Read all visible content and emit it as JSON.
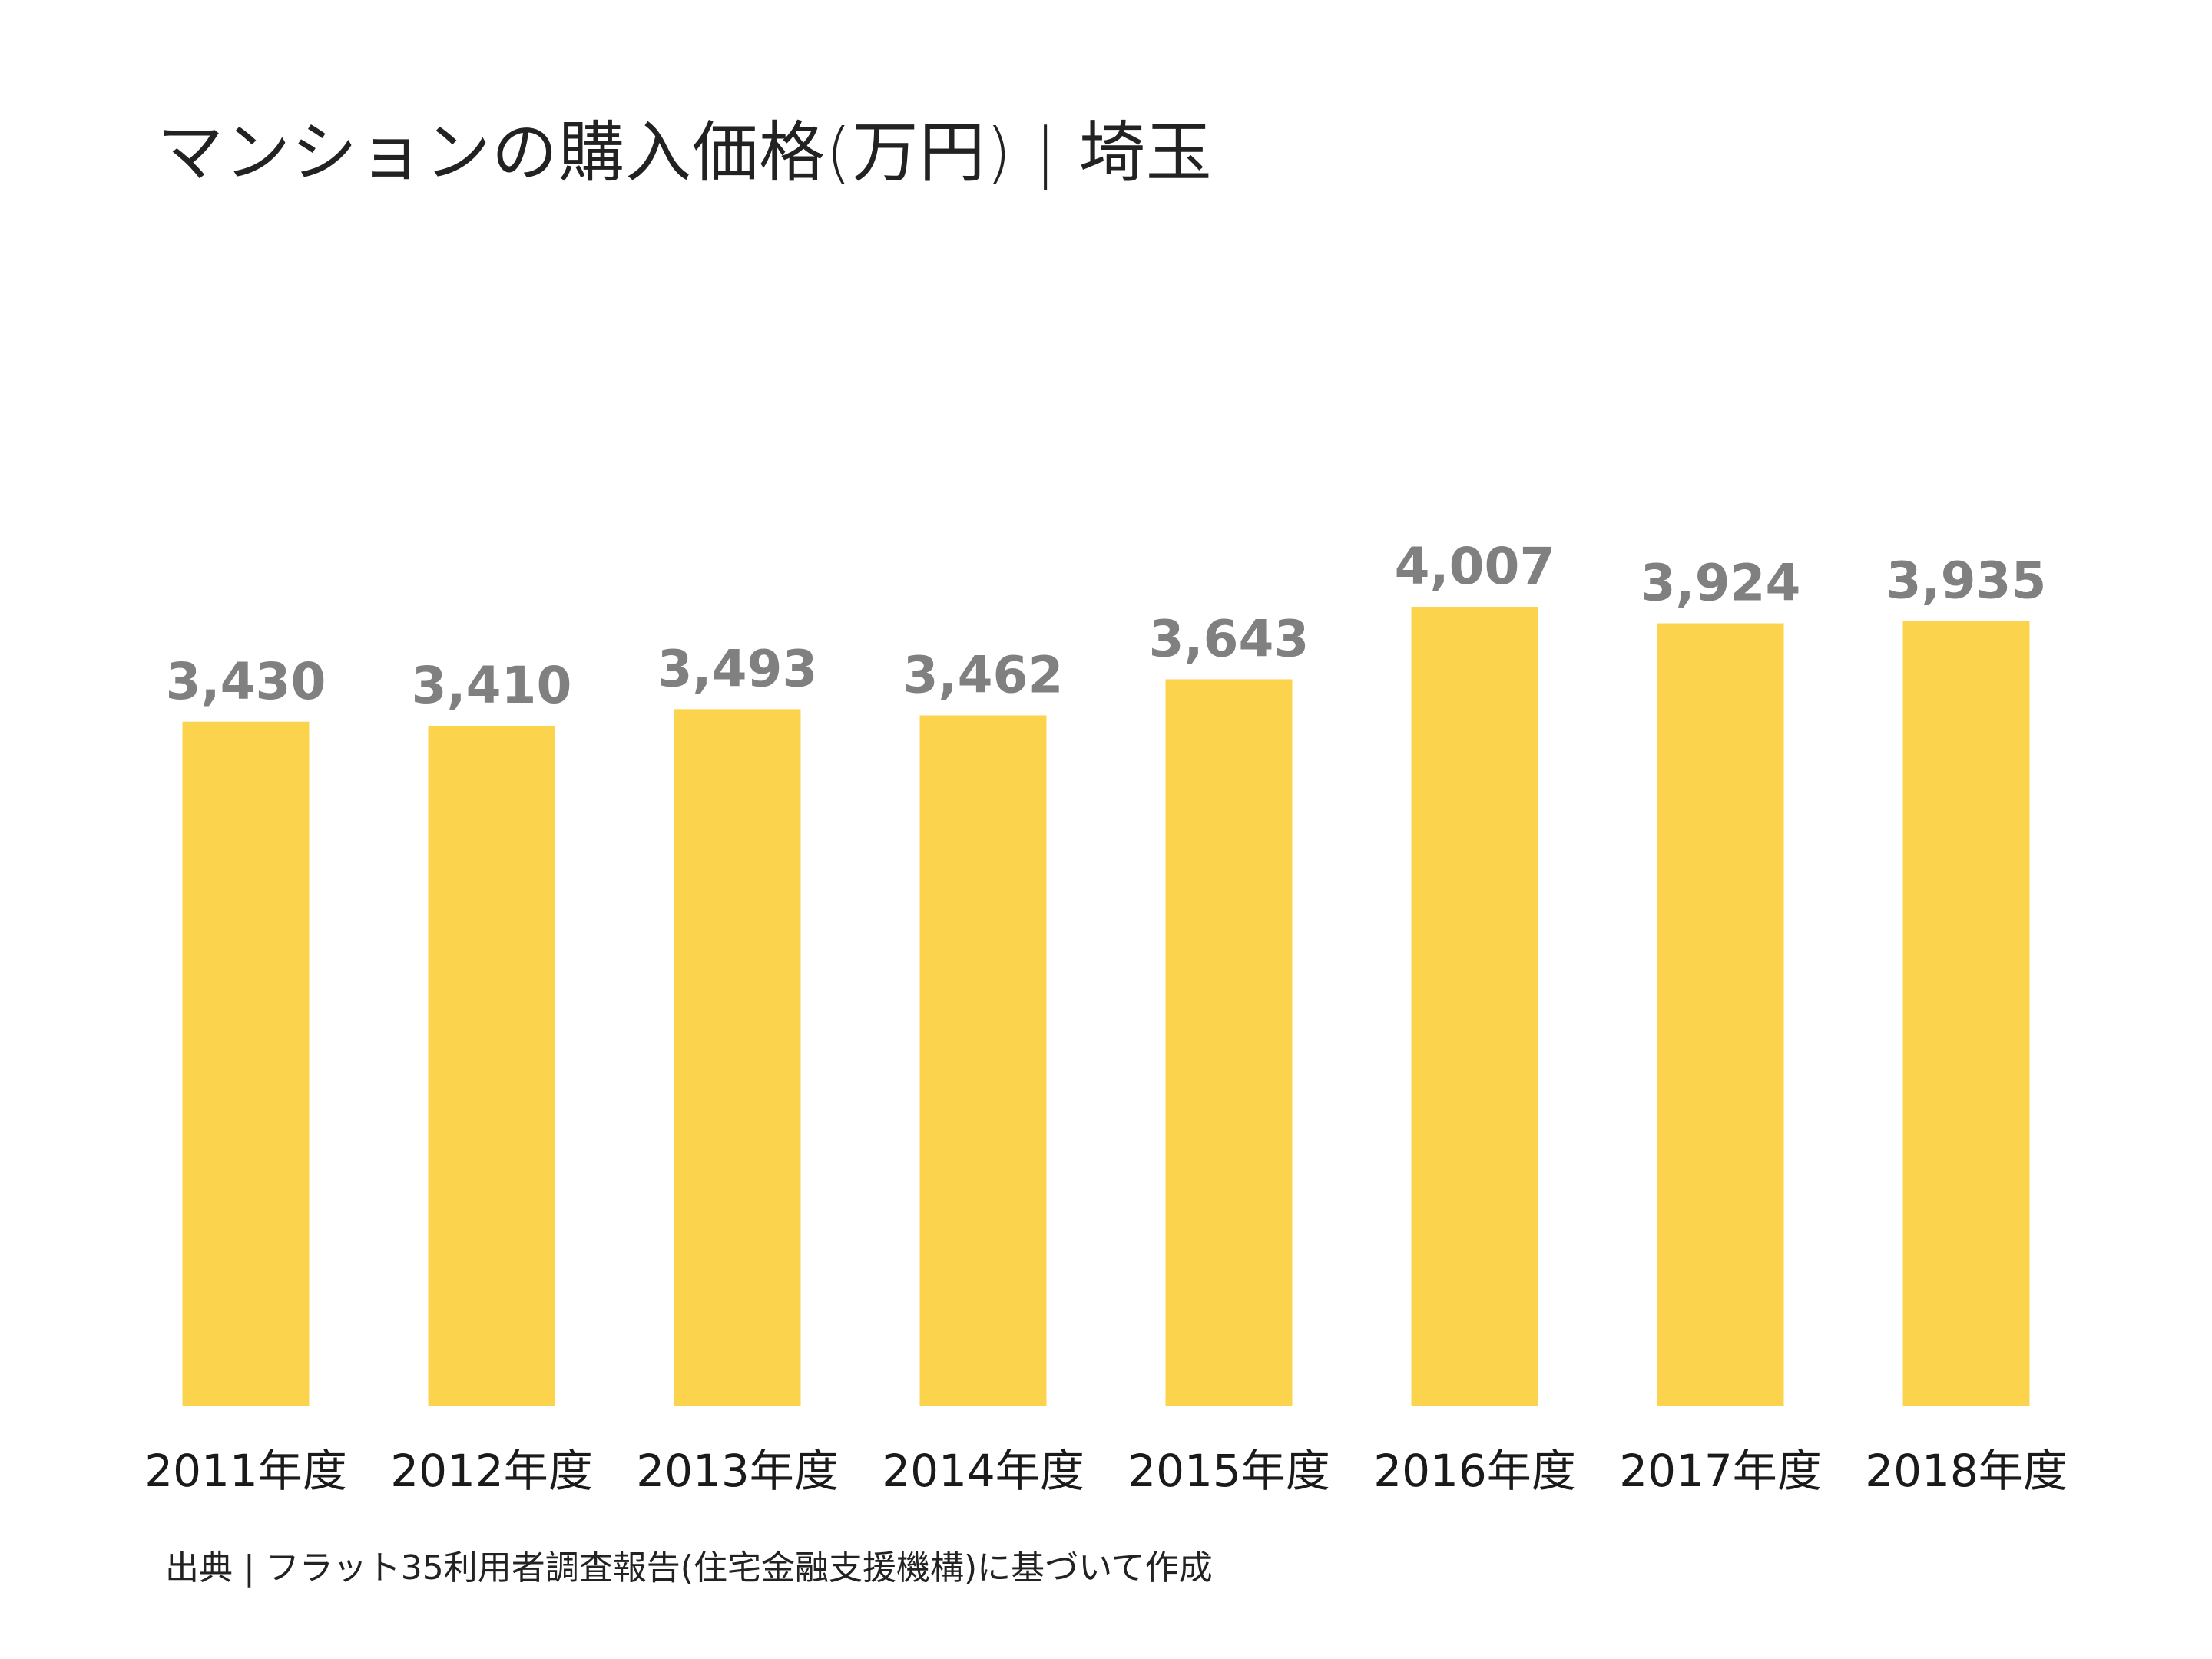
{
  "title": "マンションの購入価格(万円) | 埼玉",
  "source": "出典 | フラット35利用者調査報告(住宅金融支援機構)に基づいて作成",
  "colors": {
    "bar": "#FCD34D",
    "value_label": "#808080",
    "tick_label": "#1a1a1a"
  },
  "chart_data": {
    "type": "bar",
    "title": "マンションの購入価格(万円) | 埼玉",
    "categories": [
      "2011年度",
      "2012年度",
      "2013年度",
      "2014年度",
      "2015年度",
      "2016年度",
      "2017年度",
      "2018年度"
    ],
    "values": [
      3430,
      3410,
      3493,
      3462,
      3643,
      4007,
      3924,
      3935
    ],
    "value_labels": [
      "3,430",
      "3,410",
      "3,493",
      "3,462",
      "3,643",
      "4,007",
      "3,924",
      "3,935"
    ],
    "ylim": [
      0,
      4007
    ],
    "xlabel": "",
    "ylabel": "",
    "grid": false,
    "legend": "none"
  }
}
